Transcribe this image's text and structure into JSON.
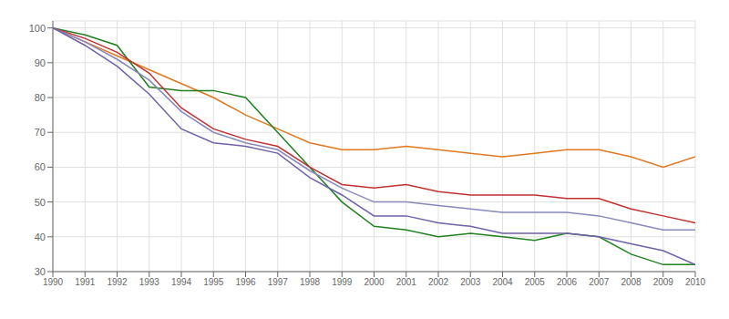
{
  "chart_data": {
    "type": "line",
    "x": [
      1990,
      1991,
      1992,
      1993,
      1994,
      1995,
      1996,
      1997,
      1998,
      1999,
      2000,
      2001,
      2002,
      2003,
      2004,
      2005,
      2006,
      2007,
      2008,
      2009,
      2010
    ],
    "series": [
      {
        "color": "#E07820",
        "values": [
          100,
          96,
          92,
          88,
          84,
          80,
          75,
          71,
          67,
          65,
          65,
          66,
          65,
          64,
          63,
          64,
          65,
          65,
          63,
          60,
          63
        ]
      },
      {
        "color": "#208020",
        "values": [
          100,
          98,
          95,
          83,
          82,
          82,
          80,
          70,
          60,
          50,
          43,
          42,
          40,
          41,
          40,
          39,
          41,
          40,
          35,
          32,
          32
        ]
      },
      {
        "color": "#C03030",
        "values": [
          100,
          97,
          93,
          87,
          77,
          71,
          68,
          66,
          60,
          55,
          54,
          55,
          53,
          52,
          52,
          52,
          51,
          51,
          48,
          46,
          44
        ]
      },
      {
        "color": "#8888BB",
        "values": [
          100,
          96,
          91,
          85,
          76,
          70,
          67,
          65,
          59,
          54,
          50,
          50,
          49,
          48,
          47,
          47,
          47,
          46,
          44,
          42,
          42
        ]
      },
      {
        "color": "#7060A8",
        "values": [
          100,
          95,
          89,
          81,
          71,
          67,
          66,
          64,
          57,
          52,
          46,
          46,
          44,
          43,
          41,
          41,
          41,
          40,
          38,
          36,
          32
        ]
      }
    ],
    "xlim": [
      1990,
      2010
    ],
    "xticks": [
      1990,
      1991,
      1992,
      1993,
      1994,
      1995,
      1996,
      1997,
      1998,
      1999,
      2000,
      2001,
      2002,
      2003,
      2004,
      2005,
      2006,
      2007,
      2008,
      2009,
      2010
    ],
    "ylim": [
      30,
      102
    ],
    "yticks": [
      30,
      40,
      50,
      60,
      70,
      80,
      90,
      100
    ],
    "grid": true
  }
}
